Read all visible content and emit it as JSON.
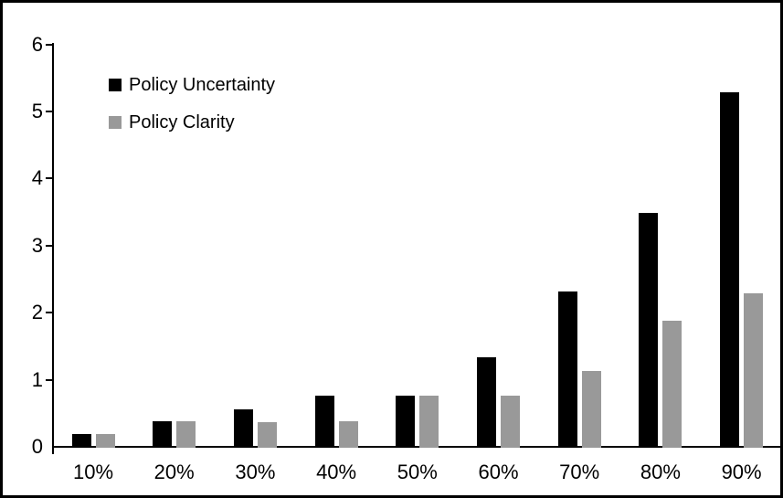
{
  "window": {
    "background_color": "#ffffff",
    "border_color": "#000000"
  },
  "legend": {
    "position": "top-left",
    "items": [
      {
        "label": "Policy Uncertainty",
        "color": "#000000"
      },
      {
        "label": "Policy Clarity",
        "color": "#999999"
      }
    ]
  },
  "chart_data": {
    "type": "bar",
    "title": "",
    "xlabel": "",
    "ylabel": "",
    "categories": [
      "10%",
      "20%",
      "30%",
      "40%",
      "50%",
      "60%",
      "70%",
      "80%",
      "90%"
    ],
    "series": [
      {
        "name": "Policy Uncertainty",
        "color": "#000000",
        "values": [
          0.2,
          0.39,
          0.57,
          0.77,
          0.78,
          1.35,
          2.33,
          3.5,
          5.3
        ]
      },
      {
        "name": "Policy Clarity",
        "color": "#999999",
        "values": [
          0.2,
          0.39,
          0.38,
          0.39,
          0.77,
          0.78,
          1.15,
          1.9,
          2.3
        ]
      }
    ],
    "ylim": [
      0,
      6
    ],
    "y_ticks": [
      "0",
      "1",
      "2",
      "3",
      "4",
      "5",
      "6"
    ],
    "grid": false,
    "legend_position": "top-left"
  }
}
